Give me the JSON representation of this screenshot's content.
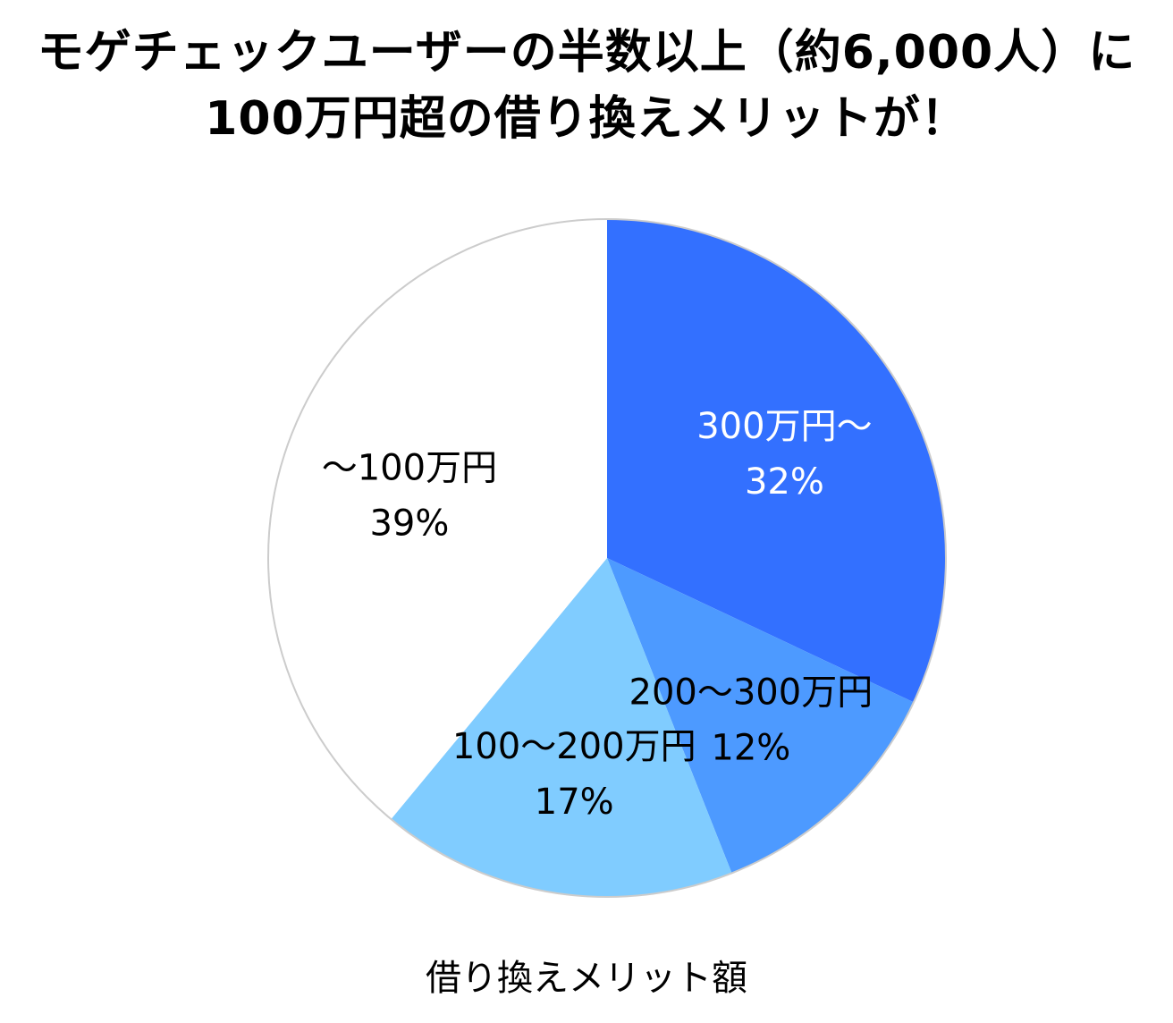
{
  "title_lines": [
    "モゲチェックユーザーの半数以上（約6,000人）に",
    "100万円超の借り換えメリットが！"
  ],
  "caption": "借り換えメリット額",
  "chart_data": {
    "type": "pie",
    "start_angle": "12 o'clock",
    "direction": "clockwise",
    "slices": [
      {
        "label": "300万円〜",
        "percent_label": "32%",
        "value": 32,
        "color": "#3370FF",
        "text_color": "#FFFFFF"
      },
      {
        "label": "200〜300万円",
        "percent_label": "12%",
        "value": 12,
        "color": "#4D9AFF",
        "text_color": "#000000"
      },
      {
        "label": "100〜200万円",
        "percent_label": "17%",
        "value": 17,
        "color": "#80CCFF",
        "text_color": "#000000"
      },
      {
        "label": "〜100万円",
        "percent_label": "39%",
        "value": 39,
        "color": "#FFFFFF",
        "text_color": "#000000"
      }
    ],
    "outline_color": "#CCCCCC"
  }
}
